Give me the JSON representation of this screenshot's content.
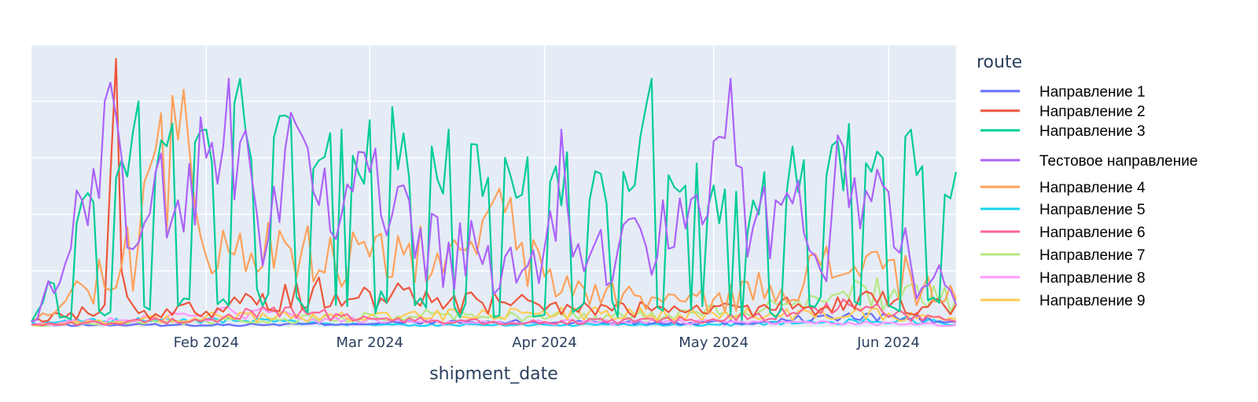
{
  "chart_data": {
    "type": "line",
    "title": "",
    "xlabel": "shipment_date",
    "ylabel": "",
    "x_range": [
      "2024-01-01",
      "2024-06-13"
    ],
    "x_ticks": [
      {
        "date": "2024-02-01",
        "label": "Feb 2024"
      },
      {
        "date": "2024-03-01",
        "label": "Mar 2024"
      },
      {
        "date": "2024-04-01",
        "label": "Apr 2024"
      },
      {
        "date": "2024-05-01",
        "label": "May 2024"
      },
      {
        "date": "2024-06-01",
        "label": "Jun 2024"
      }
    ],
    "y_range": [
      0,
      100
    ],
    "y_gridlines": [
      0,
      20,
      40,
      60,
      80,
      100
    ],
    "y_ticks_visible": false,
    "grid": true,
    "plot_background": "#e5ecf6",
    "legend": {
      "title": "route",
      "placement": "right"
    },
    "series": [
      {
        "name": "Направление 1",
        "color": "#636efa",
        "keypoints": [
          [
            "2024-01-01",
            1
          ],
          [
            "2024-02-10",
            1
          ],
          [
            "2024-03-15",
            2
          ],
          [
            "2024-04-10",
            2
          ],
          [
            "2024-05-10",
            2
          ],
          [
            "2024-05-20",
            4
          ],
          [
            "2024-06-01",
            4
          ],
          [
            "2024-06-13",
            2
          ]
        ]
      },
      {
        "name": "Направление 2",
        "color": "#ef553b",
        "keypoints": [
          [
            "2024-01-01",
            2
          ],
          [
            "2024-01-14",
            8
          ],
          [
            "2024-01-16",
            95
          ],
          [
            "2024-01-17",
            20
          ],
          [
            "2024-01-20",
            5
          ],
          [
            "2024-02-05",
            8
          ],
          [
            "2024-02-20",
            14
          ],
          [
            "2024-03-05",
            12
          ],
          [
            "2024-03-20",
            10
          ],
          [
            "2024-04-05",
            8
          ],
          [
            "2024-04-25",
            6
          ],
          [
            "2024-05-10",
            8
          ],
          [
            "2024-05-25",
            10
          ],
          [
            "2024-06-13",
            8
          ]
        ]
      },
      {
        "name": "Направление 3",
        "color": "#00cc96",
        "keypoints": [
          [
            "2024-01-01",
            2
          ],
          [
            "2024-01-10",
            45
          ],
          [
            "2024-01-20",
            80
          ],
          [
            "2024-02-01",
            70
          ],
          [
            "2024-02-07",
            88
          ],
          [
            "2024-02-15",
            75
          ],
          [
            "2024-02-25",
            70
          ],
          [
            "2024-03-05",
            78
          ],
          [
            "2024-03-15",
            70
          ],
          [
            "2024-03-25",
            60
          ],
          [
            "2024-04-05",
            62
          ],
          [
            "2024-04-15",
            55
          ],
          [
            "2024-04-20",
            88
          ],
          [
            "2024-04-28",
            58
          ],
          [
            "2024-05-05",
            48
          ],
          [
            "2024-05-15",
            64
          ],
          [
            "2024-05-25",
            72
          ],
          [
            "2024-06-05",
            70
          ],
          [
            "2024-06-13",
            55
          ]
        ]
      },
      {
        "name": "Тестовое направление",
        "color": "#ab63fa",
        "keypoints": [
          [
            "2024-01-01",
            2
          ],
          [
            "2024-01-03",
            10
          ],
          [
            "2024-01-10",
            45
          ],
          [
            "2024-01-14",
            80
          ],
          [
            "2024-01-17",
            60
          ],
          [
            "2024-01-20",
            30
          ],
          [
            "2024-01-23",
            55
          ],
          [
            "2024-01-27",
            45
          ],
          [
            "2024-02-01",
            60
          ],
          [
            "2024-02-05",
            88
          ],
          [
            "2024-02-10",
            40
          ],
          [
            "2024-02-15",
            63
          ],
          [
            "2024-02-20",
            48
          ],
          [
            "2024-02-25",
            40
          ],
          [
            "2024-03-01",
            55
          ],
          [
            "2024-03-05",
            40
          ],
          [
            "2024-03-10",
            35
          ],
          [
            "2024-03-15",
            30
          ],
          [
            "2024-03-20",
            28
          ],
          [
            "2024-03-25",
            25
          ],
          [
            "2024-04-01",
            28
          ],
          [
            "2024-04-04",
            70
          ],
          [
            "2024-04-06",
            25
          ],
          [
            "2024-04-10",
            30
          ],
          [
            "2024-04-18",
            35
          ],
          [
            "2024-04-22",
            45
          ],
          [
            "2024-04-26",
            35
          ],
          [
            "2024-04-30",
            40
          ],
          [
            "2024-05-04",
            88
          ],
          [
            "2024-05-07",
            25
          ],
          [
            "2024-05-12",
            45
          ],
          [
            "2024-05-16",
            52
          ],
          [
            "2024-05-20",
            20
          ],
          [
            "2024-05-23",
            68
          ],
          [
            "2024-05-27",
            35
          ],
          [
            "2024-06-01",
            48
          ],
          [
            "2024-06-05",
            22
          ],
          [
            "2024-06-10",
            22
          ],
          [
            "2024-06-13",
            8
          ]
        ]
      },
      {
        "name": "Направление 4",
        "color": "#ffa15a",
        "keypoints": [
          [
            "2024-01-01",
            2
          ],
          [
            "2024-01-10",
            15
          ],
          [
            "2024-01-20",
            30
          ],
          [
            "2024-01-26",
            82
          ],
          [
            "2024-02-01",
            25
          ],
          [
            "2024-02-15",
            30
          ],
          [
            "2024-03-01",
            25
          ],
          [
            "2024-03-15",
            28
          ],
          [
            "2024-03-23",
            45
          ],
          [
            "2024-04-01",
            18
          ],
          [
            "2024-04-15",
            12
          ],
          [
            "2024-05-01",
            10
          ],
          [
            "2024-05-20",
            22
          ],
          [
            "2024-05-28",
            25
          ],
          [
            "2024-06-05",
            18
          ],
          [
            "2024-06-13",
            10
          ]
        ]
      },
      {
        "name": "Направление 5",
        "color": "#19d3f3",
        "keypoints": [
          [
            "2024-01-01",
            2
          ],
          [
            "2024-02-01",
            3
          ],
          [
            "2024-03-01",
            1
          ],
          [
            "2024-04-01",
            1
          ],
          [
            "2024-05-01",
            1
          ],
          [
            "2024-06-05",
            3
          ],
          [
            "2024-06-13",
            1
          ]
        ]
      },
      {
        "name": "Направление 6",
        "color": "#ff6692",
        "keypoints": [
          [
            "2024-01-01",
            1
          ],
          [
            "2024-02-01",
            3
          ],
          [
            "2024-02-15",
            7
          ],
          [
            "2024-03-01",
            3
          ],
          [
            "2024-04-01",
            2
          ],
          [
            "2024-05-01",
            3
          ],
          [
            "2024-05-25",
            8
          ],
          [
            "2024-06-13",
            2
          ]
        ]
      },
      {
        "name": "Направление 7",
        "color": "#b6e880",
        "keypoints": [
          [
            "2024-01-01",
            1
          ],
          [
            "2024-02-15",
            3
          ],
          [
            "2024-03-15",
            5
          ],
          [
            "2024-04-15",
            4
          ],
          [
            "2024-05-15",
            8
          ],
          [
            "2024-05-28",
            14
          ],
          [
            "2024-06-13",
            10
          ]
        ]
      },
      {
        "name": "Направление 8",
        "color": "#ff97ff",
        "keypoints": [
          [
            "2024-01-01",
            1
          ],
          [
            "2024-02-10",
            6
          ],
          [
            "2024-02-20",
            3
          ],
          [
            "2024-03-15",
            2
          ],
          [
            "2024-04-15",
            2
          ],
          [
            "2024-05-15",
            2
          ],
          [
            "2024-06-13",
            1
          ]
        ]
      },
      {
        "name": "Направление 9",
        "color": "#fecb52",
        "keypoints": [
          [
            "2024-01-01",
            1
          ],
          [
            "2024-02-01",
            4
          ],
          [
            "2024-03-01",
            4
          ],
          [
            "2024-04-01",
            6
          ],
          [
            "2024-05-01",
            5
          ],
          [
            "2024-06-01",
            5
          ],
          [
            "2024-06-13",
            3
          ]
        ]
      }
    ]
  }
}
